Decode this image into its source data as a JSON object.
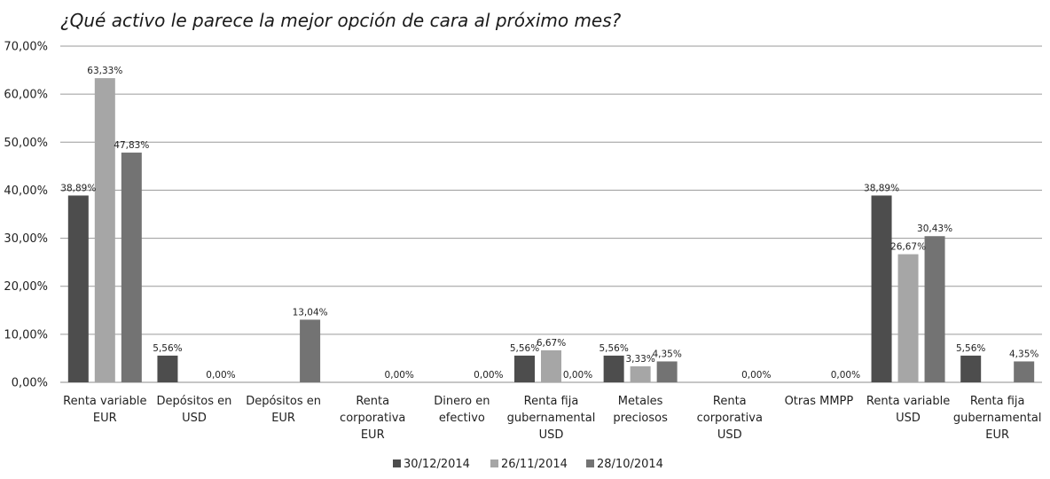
{
  "chart_data": {
    "type": "bar",
    "title": "¿Qué activo le parece la mejor opción de cara al próximo mes?",
    "xlabel": "",
    "ylabel": "",
    "ylim": [
      0,
      70
    ],
    "y_ticks": [
      "0,00%",
      "10,00%",
      "20,00%",
      "30,00%",
      "40,00%",
      "50,00%",
      "60,00%",
      "70,00%"
    ],
    "grid": true,
    "legend_position": "bottom",
    "categories": [
      [
        "Renta variable",
        "EUR"
      ],
      [
        "Depósitos en",
        "USD"
      ],
      [
        "Depósitos en",
        "EUR"
      ],
      [
        "Renta",
        "corporativa",
        "EUR"
      ],
      [
        "Dinero en",
        "efectivo"
      ],
      [
        "Renta fija",
        "gubernamental",
        "USD"
      ],
      [
        "Metales",
        "preciosos"
      ],
      [
        "Renta",
        "corporativa",
        "USD"
      ],
      [
        "Otras MMPP"
      ],
      [
        "Renta variable",
        "USD"
      ],
      [
        "Renta fija",
        "gubernamental",
        "EUR"
      ]
    ],
    "series": [
      {
        "name": "30/12/2014",
        "color": "#4d4d4d",
        "values": [
          38.89,
          5.56,
          null,
          null,
          null,
          5.56,
          5.56,
          null,
          null,
          38.89,
          5.56
        ],
        "labels": [
          "38,89%",
          "5,56%",
          "",
          "",
          "",
          "5,56%",
          "5,56%",
          "",
          "",
          "38,89%",
          "5,56%"
        ]
      },
      {
        "name": "26/11/2014",
        "color": "#a6a6a6",
        "values": [
          63.33,
          null,
          null,
          null,
          null,
          6.67,
          3.33,
          null,
          null,
          26.67,
          null
        ],
        "labels": [
          "63,33%",
          "",
          "",
          "",
          "",
          "6,67%",
          "3,33%",
          "",
          "",
          "26,67%",
          ""
        ]
      },
      {
        "name": "28/10/2014",
        "color": "#737373",
        "values": [
          47.83,
          0,
          13.04,
          0,
          0,
          0,
          4.35,
          0,
          0,
          30.43,
          4.35
        ],
        "labels": [
          "47,83%",
          "0,00%",
          "13,04%",
          "0,00%",
          "0,00%",
          "0,00%",
          "4,35%",
          "0,00%",
          "0,00%",
          "30,43%",
          "4,35%"
        ]
      }
    ]
  }
}
